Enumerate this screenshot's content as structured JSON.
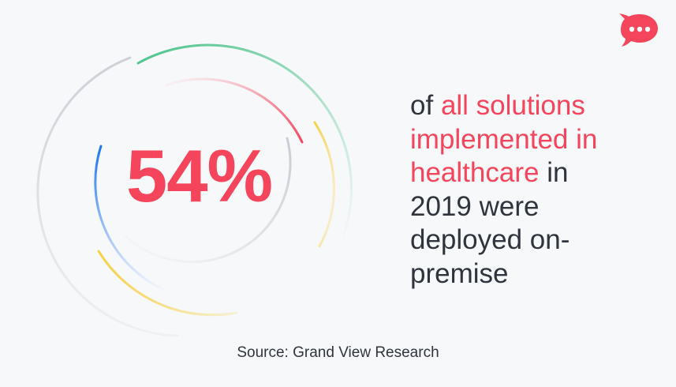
{
  "stat": {
    "value": "54%"
  },
  "statement": {
    "line1_plain": "of",
    "line1_accent": "all solutions",
    "line2_accent": "implemented in",
    "line3_accent": "healthcare",
    "line3_plain": "in",
    "line4": "2019 were",
    "line5": "deployed on-",
    "line6": "premise"
  },
  "source": {
    "label": "Source: Grand View Research"
  },
  "icons": {
    "logo": "chat-bubble-icon",
    "rings": "decorative-rings-icon"
  },
  "colors": {
    "background": "#f7f8fa",
    "accent": "#f5455c",
    "text": "#2f343d",
    "green": "#4cc38a",
    "yellow": "#f7d046",
    "blue": "#1d74f5",
    "gray": "#cdd1d7",
    "pink": "#f5455c"
  }
}
